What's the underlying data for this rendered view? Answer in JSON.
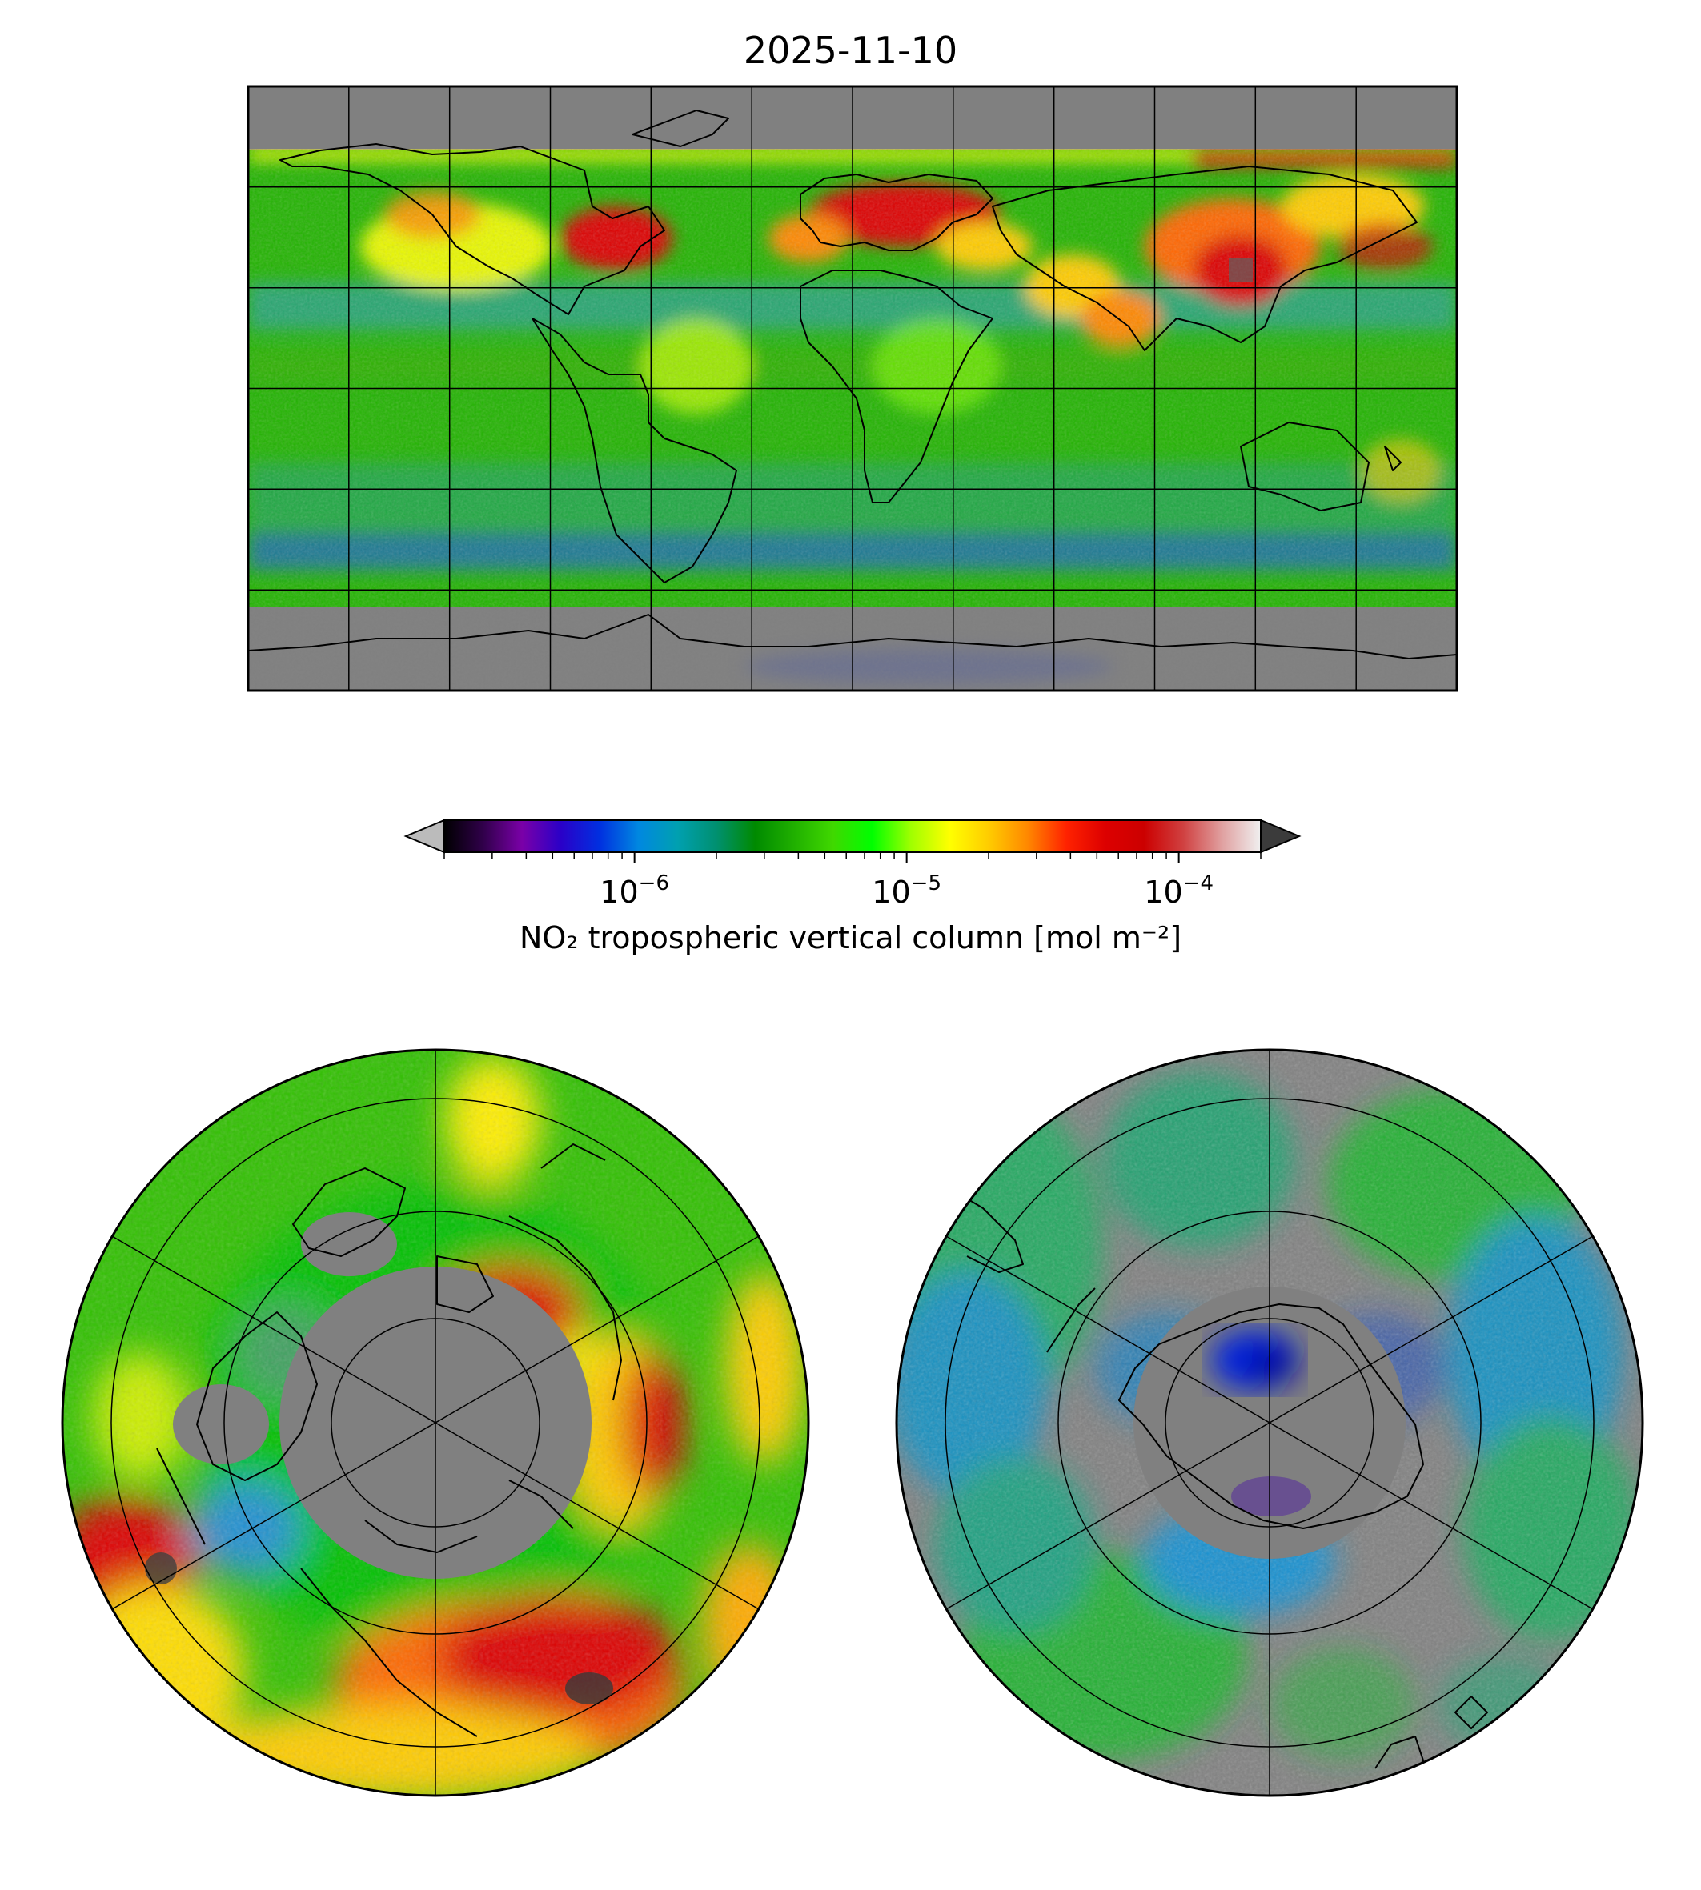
{
  "figure": {
    "title": "2025-11-10"
  },
  "colorbar": {
    "label": "NO₂ tropospheric vertical column [mol m⁻²]",
    "scale": "log",
    "min": 2e-07,
    "max": 0.0002,
    "extend": "both",
    "ticks": [
      {
        "value": 1e-06,
        "base": "10",
        "exp": "−6"
      },
      {
        "value": 1e-05,
        "base": "10",
        "exp": "−5"
      },
      {
        "value": 0.0001,
        "base": "10",
        "exp": "−4"
      }
    ],
    "stops": [
      "#000000",
      "#30004a",
      "#7a00a8",
      "#2a00c8",
      "#0030e0",
      "#0088e0",
      "#00a0b0",
      "#009070",
      "#008a00",
      "#20b000",
      "#40d800",
      "#00ff00",
      "#a0ff00",
      "#ffff00",
      "#ffcc00",
      "#ff8800",
      "#ff2200",
      "#dd0000",
      "#cc0000",
      "#d04040",
      "#e0a0a0",
      "#f0f0f0"
    ],
    "under_color": "#bbbbbb",
    "over_color": "#3b3b3b",
    "missing_color": "#808080"
  },
  "maps": {
    "world": {
      "projection": "plate-carree",
      "gridlines": "30deg"
    },
    "north": {
      "projection": "north-polar-stereographic"
    },
    "south": {
      "projection": "south-polar-stereographic"
    }
  }
}
